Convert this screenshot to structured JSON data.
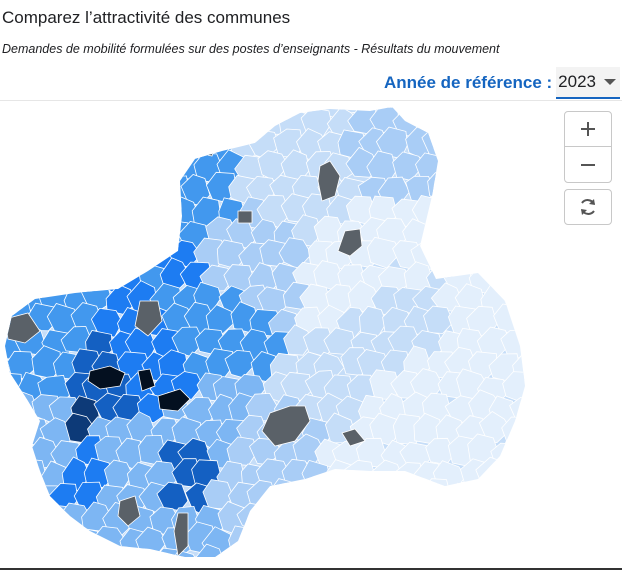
{
  "header": {
    "title": "Comparez l’attractivité des communes",
    "subtitle": "Demandes de mobilité formulées sur des postes d’enseignants - Résultats du mouvement"
  },
  "year_selector": {
    "label": "Année de référence :",
    "selected": "2023"
  },
  "map": {
    "colors": {
      "very_low": "#e3effc",
      "low": "#c5ddf8",
      "mid_low": "#a9cdf6",
      "mid": "#7db6f3",
      "mid_high": "#4298ee",
      "high": "#1d7cf2",
      "very_high": "#1460c2",
      "darkest": "#0d3a78",
      "max": "#041020",
      "no_data": "#5a6168",
      "border": "#ffffff"
    }
  },
  "controls": {
    "zoom_in": "+",
    "zoom_out": "−",
    "reset_icon": "refresh-icon"
  }
}
